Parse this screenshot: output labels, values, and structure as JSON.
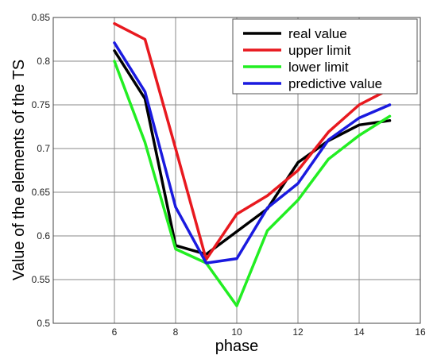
{
  "chart_data": {
    "type": "line",
    "xlabel": "phase",
    "ylabel": "Value of the elements of the TS",
    "xlim": [
      4,
      16
    ],
    "ylim": [
      0.5,
      0.85
    ],
    "xticks": [
      6,
      8,
      10,
      12,
      14,
      16
    ],
    "xtick_labels": [
      "6",
      "8",
      "10",
      "12",
      "14",
      "16"
    ],
    "yticks": [
      0.5,
      0.55,
      0.6,
      0.65,
      0.7,
      0.75,
      0.8,
      0.85
    ],
    "ytick_labels": [
      "0.5",
      "0.55",
      "0.6",
      "0.65",
      "0.7",
      "0.75",
      "0.8",
      "0.85"
    ],
    "grid": true,
    "legend_position": "top-right",
    "x": [
      6,
      7,
      8,
      9,
      10,
      11,
      12,
      13,
      14,
      15
    ],
    "series": [
      {
        "name": "real value",
        "color": "#000000",
        "values": [
          0.812,
          0.757,
          0.589,
          0.579,
          0.605,
          0.631,
          0.684,
          0.709,
          0.727,
          0.732
        ]
      },
      {
        "name": "upper limit",
        "color": "#e8191f",
        "values": [
          0.843,
          0.825,
          0.7,
          0.573,
          0.625,
          0.646,
          0.675,
          0.719,
          0.75,
          0.768
        ]
      },
      {
        "name": "lower limit",
        "color": "#22ee22",
        "values": [
          0.8,
          0.707,
          0.585,
          0.569,
          0.52,
          0.606,
          0.641,
          0.688,
          0.715,
          0.737
        ]
      },
      {
        "name": "predictive value",
        "color": "#1a1adf",
        "values": [
          0.821,
          0.765,
          0.633,
          0.569,
          0.574,
          0.632,
          0.66,
          0.71,
          0.735,
          0.75
        ]
      }
    ]
  }
}
